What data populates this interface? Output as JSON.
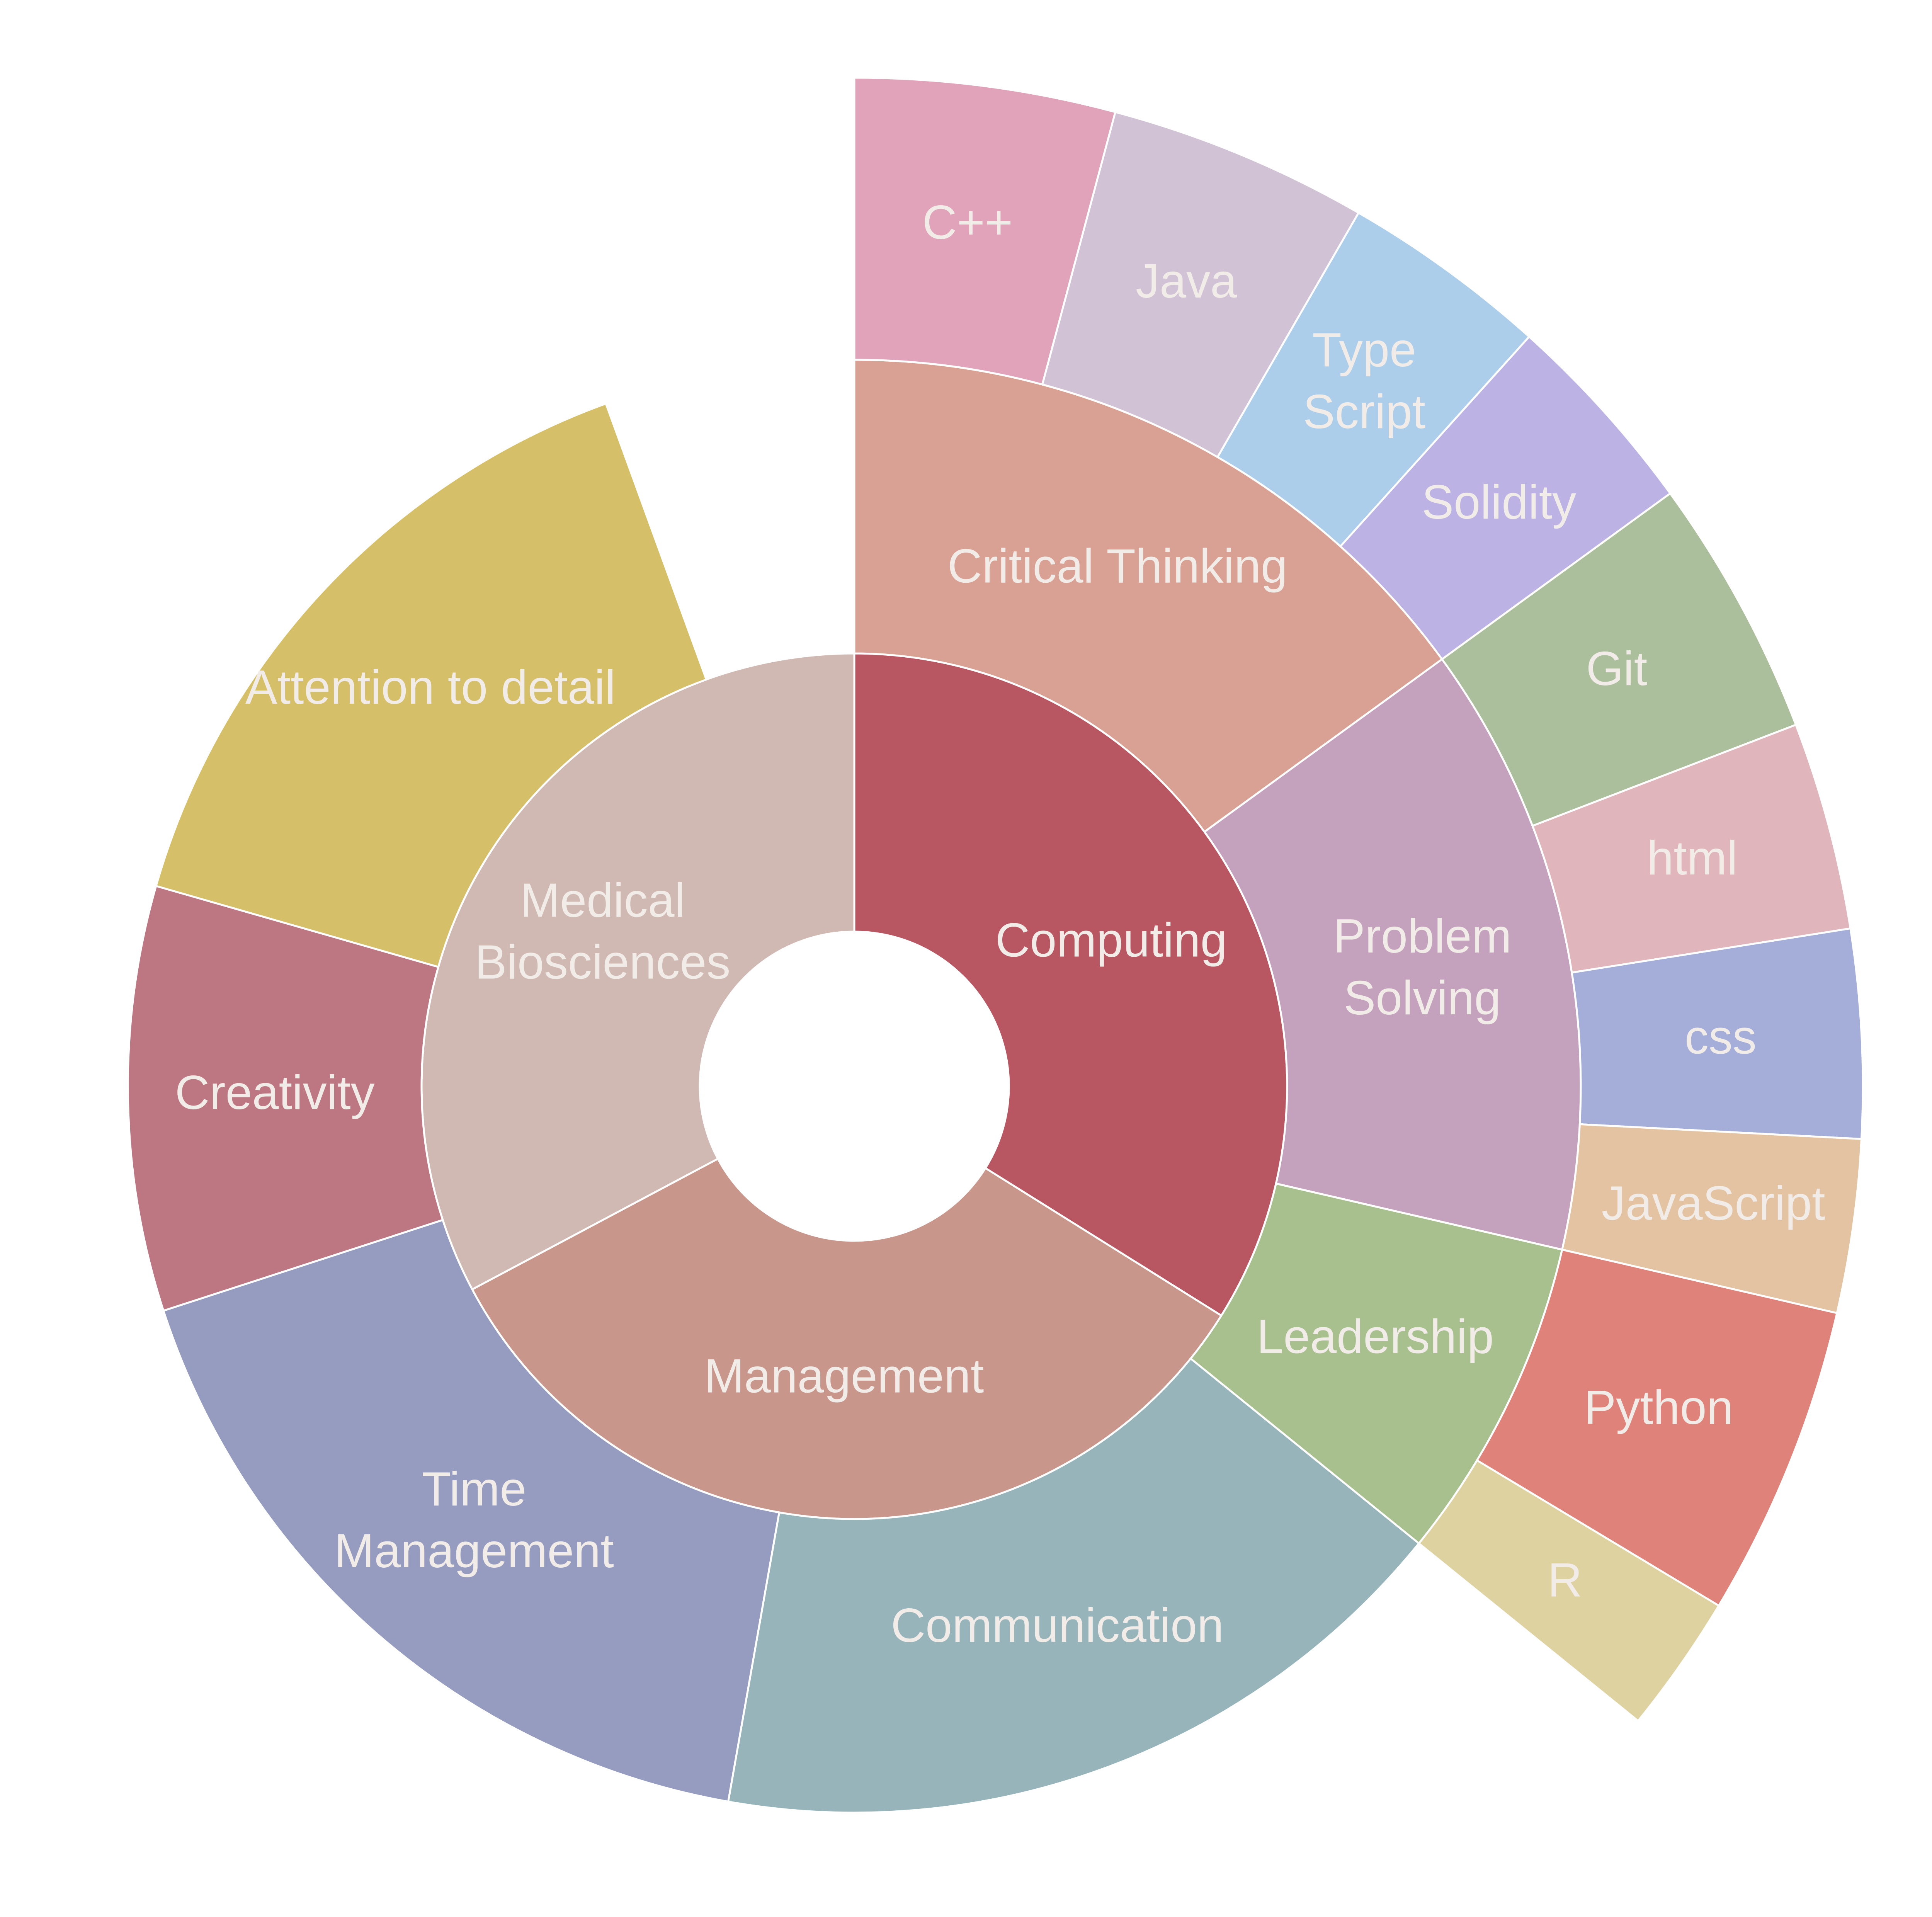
{
  "chart_data": {
    "type": "sunburst",
    "title": "",
    "units": "relative share of full circle (degrees)",
    "rings": [
      {
        "level": 1,
        "segments": [
          {
            "label": "Computing",
            "lines": [
              "Computing"
            ],
            "value": 122,
            "color": "#b85662"
          },
          {
            "label": "Management",
            "lines": [
              "Management"
            ],
            "value": 120,
            "color": "#c9968c"
          },
          {
            "label": "Medical Biosciences",
            "lines": [
              "Medical",
              "Biosciences"
            ],
            "value": 118,
            "color": "#d0b9b2"
          }
        ]
      },
      {
        "level": 2,
        "segments": [
          {
            "label": "Critical Thinking",
            "lines": [
              "Critical Thinking"
            ],
            "parent": "Computing",
            "value": 54,
            "color": "#d9a193"
          },
          {
            "label": "Problem Solving",
            "lines": [
              "Problem",
              "Solving"
            ],
            "parent": "Computing",
            "value": 49,
            "color": "#c4a1bc"
          },
          {
            "label": "Leadership",
            "lines": [
              "Leadership"
            ],
            "parent": "Management",
            "value": 26,
            "color": "#a7c08e"
          },
          {
            "label": "Communication",
            "lines": [
              "Communication"
            ],
            "parent": "Management",
            "value": 61,
            "color": "#96b4b9"
          },
          {
            "label": "Time Management",
            "lines": [
              "Time",
              "Management"
            ],
            "parent": "Management",
            "value": 62,
            "color": "#969cbf"
          },
          {
            "label": "Creativity",
            "lines": [
              "Creativity"
            ],
            "parent": "Medical Biosciences",
            "value": 34,
            "color": "#bd7782"
          },
          {
            "label": "Attention to detail",
            "lines": [
              "Attention to detail"
            ],
            "parent": "Medical Biosciences",
            "value": 54,
            "color": "#d5c069"
          }
        ]
      },
      {
        "level": 3,
        "segments": [
          {
            "label": "C++",
            "lines": [
              "C++"
            ],
            "parent": "Critical Thinking",
            "value": 15,
            "color": "#e0a3b9"
          },
          {
            "label": "Java",
            "lines": [
              "Java"
            ],
            "parent": "Critical Thinking",
            "value": 15,
            "color": "#d1c3d5"
          },
          {
            "label": "Type Script",
            "lines": [
              "Type",
              "Script"
            ],
            "parent": "Critical Thinking",
            "value": 12,
            "color": "#acceea"
          },
          {
            "label": "Solidity",
            "lines": [
              "Solidity"
            ],
            "parent": "Critical Thinking",
            "value": 12,
            "color": "#bcb2e4"
          },
          {
            "label": "Git",
            "lines": [
              "Git"
            ],
            "parent": "Problem Solving",
            "value": 15,
            "color": "#abbf9c"
          },
          {
            "label": "html",
            "lines": [
              "html"
            ],
            "parent": "Problem Solving",
            "value": 12,
            "color": "#e0b5bb"
          },
          {
            "label": "css",
            "lines": [
              "css"
            ],
            "parent": "Problem Solving",
            "value": 12,
            "color": "#a5aed8"
          },
          {
            "label": "JavaScript",
            "lines": [
              "JavaScript"
            ],
            "parent": "Problem Solving",
            "value": 10,
            "color": "#e3c3a1"
          },
          {
            "label": "Python",
            "lines": [
              "Python"
            ],
            "parent": "Leadership",
            "value": 18,
            "color": "#df827a"
          },
          {
            "label": "R",
            "lines": [
              "R"
            ],
            "parent": "Leadership",
            "value": 8,
            "color": "#dfd2a1"
          }
        ]
      }
    ]
  }
}
